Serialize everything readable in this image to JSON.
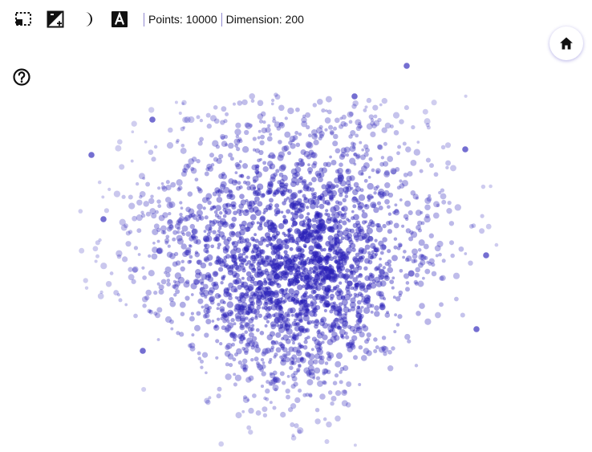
{
  "toolbar": {
    "tools": [
      {
        "name": "box-select-icon",
        "active": false
      },
      {
        "name": "contrast-plus-icon",
        "active": false
      },
      {
        "name": "moon-icon",
        "active": false
      },
      {
        "name": "text-label-icon",
        "active": false
      }
    ],
    "points_text": "Points: 10000",
    "dimension_text": "Dimension: 200"
  },
  "help": {
    "icon": "help-circle-icon"
  },
  "home": {
    "icon": "home-icon"
  },
  "scatter": {
    "point_count": 10000,
    "dimension": 200,
    "point_color": "#2a20b8"
  }
}
